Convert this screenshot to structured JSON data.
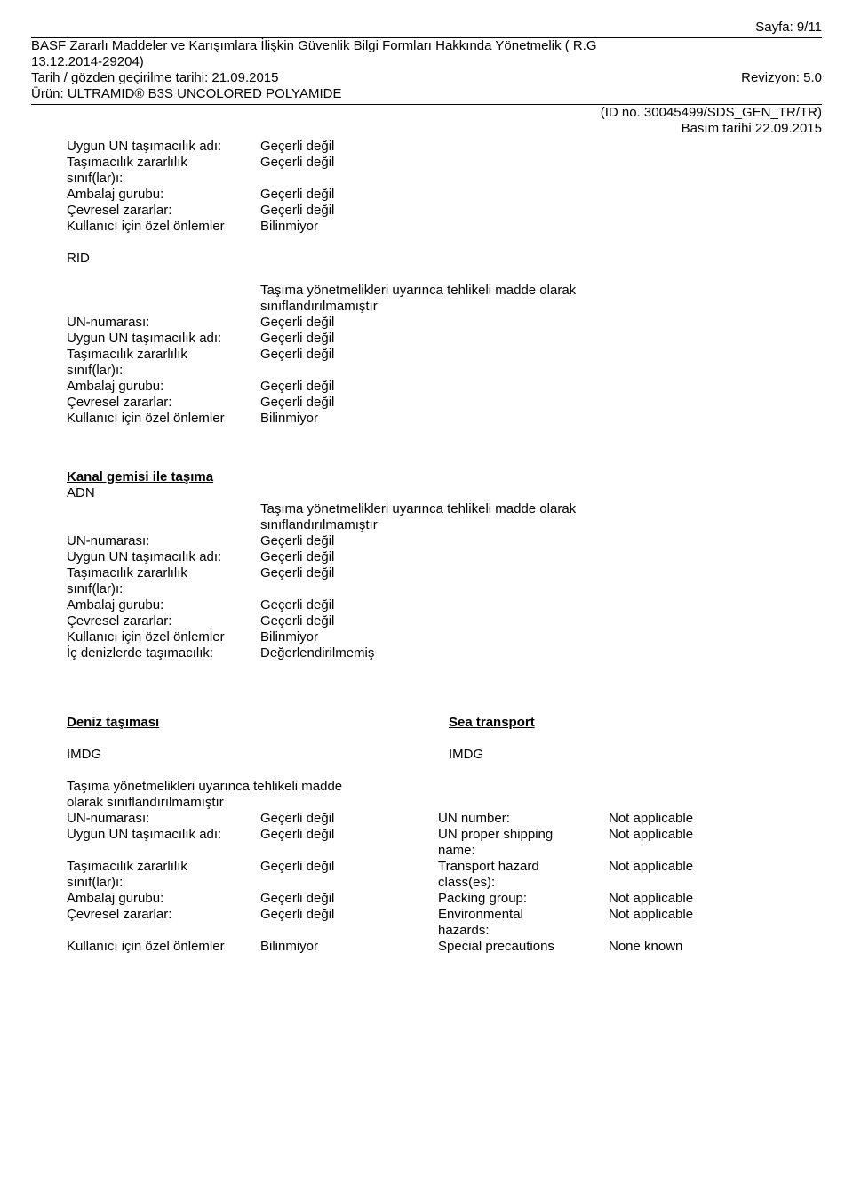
{
  "header": {
    "sayfa": "Sayfa: 9/11",
    "line1": "BASF Zararlı Maddeler ve Karışımlara İlişkin Güvenlik Bilgi Formları Hakkında Yönetmelik ( R.G",
    "line2": "13.12.2014-29204)",
    "tarih": "Tarih / gözden geçirilme tarihi: 21.09.2015",
    "revizyon": "Revizyon: 5.0",
    "urun": "Ürün: ULTRAMID® B3S UNCOLORED POLYAMIDE",
    "idno": "(ID no. 30045499/SDS_GEN_TR/TR)",
    "basim": "Basım tarihi 22.09.2015"
  },
  "labels": {
    "un_shipping": "Uygun UN taşımacılık adı:",
    "hazard_class1": "Taşımacılık zararlılık",
    "hazard_class2": "sınıf(lar)ı:",
    "packing": "Ambalaj gurubu:",
    "env": "Çevresel zararlar:",
    "user_prec": "Kullanıcı için özel önlemler",
    "un_number": "UN-numarası:",
    "inland_title": "İç denizlerde taşımacılık:"
  },
  "values": {
    "not_applicable_tr": "Geçerli değil",
    "unknown_tr": "Bilinmiyor",
    "not_evaluated_tr": "Değerlendirilmemiş",
    "reg_note1": "Taşıma yönetmelikleri uyarınca tehlikeli madde olarak",
    "reg_note2": "sınıflandırılmamıştır"
  },
  "sections": {
    "rid": "RID",
    "kanal_title": "Kanal gemisi ile taşıma",
    "adn": "ADN",
    "deniz": "Deniz taşıması",
    "sea": "Sea transport",
    "imdg": "IMDG",
    "reg_note_tr1": "Taşıma yönetmelikleri uyarınca tehlikeli madde",
    "reg_note_tr2": "olarak sınıflandırılmamıştır"
  },
  "en_labels": {
    "un_number": "UN number:",
    "un_shipping1": "UN proper shipping",
    "un_shipping2": "name:",
    "hazard1": "Transport hazard",
    "hazard2": "class(es):",
    "packing": "Packing group:",
    "env1": "Environmental",
    "env2": "hazards:",
    "spec": "Special precautions"
  },
  "en_values": {
    "not_applicable": "Not applicable",
    "none_known": "None known"
  }
}
